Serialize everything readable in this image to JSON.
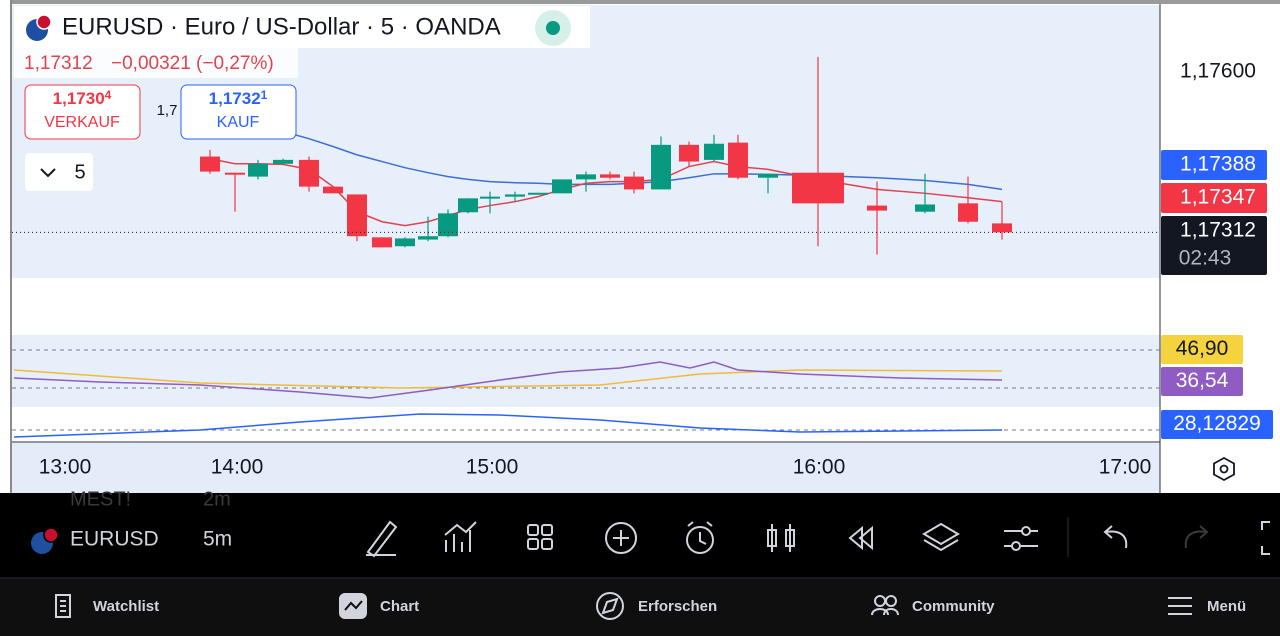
{
  "header": {
    "title": "EURUSD · Euro / US-Dollar · 5 · OANDA",
    "quote": "1,17312",
    "change": "−0,00321 (−0,27%)"
  },
  "trade": {
    "sell_price": "1,1730",
    "sell_pip": "4",
    "sell_label": "VERKAUF",
    "buy_price": "1,1732",
    "buy_pip": "1",
    "buy_label": "KAUF",
    "partial": "1,7"
  },
  "interval": "5",
  "chart_data": {
    "type": "candlestick",
    "ylim": [
      1.1723,
      1.1772
    ],
    "yticks": [
      {
        "value": 1.176,
        "label": "1,17600"
      }
    ],
    "time_labels": [
      "13:00",
      "14:00",
      "15:00",
      "16:00",
      "17:00"
    ],
    "up_color": "#089981",
    "down_color": "#f23645",
    "open": [
      1.17448,
      1.17419,
      1.17412,
      1.17435,
      1.17442,
      1.17394,
      1.1738,
      1.17303,
      1.17287,
      1.17299,
      1.17305,
      1.17348,
      1.17373,
      1.17376,
      1.1738,
      1.17382,
      1.17407,
      1.17416,
      1.17412,
      1.17389,
      1.17469,
      1.17442,
      1.17473,
      1.1741,
      1.17419,
      1.1736,
      1.17349,
      1.17364,
      1.17328
    ],
    "high": [
      1.1746,
      1.17419,
      1.17442,
      1.17444,
      1.17448,
      1.17394,
      1.1738,
      1.17303,
      1.17303,
      1.1734,
      1.17353,
      1.17373,
      1.17385,
      1.17385,
      1.17383,
      1.17407,
      1.17421,
      1.17421,
      1.17421,
      1.17484,
      1.17475,
      1.17487,
      1.17487,
      1.17417,
      1.17627,
      1.17403,
      1.17417,
      1.17412,
      1.17367
    ],
    "low": [
      1.17417,
      1.17349,
      1.17407,
      1.17433,
      1.17385,
      1.17382,
      1.17296,
      1.17285,
      1.17285,
      1.17296,
      1.17303,
      1.17346,
      1.17346,
      1.17367,
      1.1738,
      1.17382,
      1.17385,
      1.17407,
      1.17382,
      1.17389,
      1.1743,
      1.17439,
      1.17407,
      1.17382,
      1.17287,
      1.17272,
      1.17346,
      1.17328,
      1.17299
    ],
    "close": [
      1.17421,
      1.17417,
      1.17435,
      1.17442,
      1.17394,
      1.17382,
      1.17305,
      1.17285,
      1.17301,
      1.17305,
      1.17346,
      1.17373,
      1.17376,
      1.1738,
      1.17383,
      1.17407,
      1.17416,
      1.1741,
      1.17389,
      1.17469,
      1.17439,
      1.17471,
      1.1741,
      1.17417,
      1.17364,
      1.17351,
      1.17362,
      1.17331,
      1.17312
    ],
    "lines": [
      {
        "color": "#3b6fd4",
        "values": [
          1.17525,
          1.17514,
          1.17503,
          1.17493,
          1.1748,
          1.17466,
          1.17451,
          1.17439,
          1.17428,
          1.17419,
          1.17412,
          1.17407,
          1.17403,
          1.17401,
          1.174,
          1.17398,
          1.17398,
          1.17398,
          1.174,
          1.17403,
          1.1741,
          1.17417,
          1.17417,
          1.17416,
          1.17414,
          1.1741,
          1.17405,
          1.17398,
          1.17389
        ]
      },
      {
        "color": "#e0434f",
        "values": [
          1.17444,
          1.17435,
          1.17435,
          1.17434,
          1.17425,
          1.17394,
          1.17349,
          1.17331,
          1.17324,
          1.17331,
          1.17342,
          1.17353,
          1.1736,
          1.17367,
          1.17376,
          1.17389,
          1.174,
          1.17403,
          1.17403,
          1.17407,
          1.1743,
          1.17439,
          1.1743,
          1.17425,
          1.17407,
          1.17389,
          1.17382,
          1.17374,
          1.17367
        ]
      }
    ],
    "price_tags": [
      {
        "label": "1,17388",
        "color": "#2962ff"
      },
      {
        "label": "1,17347",
        "color": "#f23645"
      },
      {
        "label": "1,17312",
        "color": "#131722"
      }
    ],
    "countdown": "02:43",
    "indicator_tags": [
      {
        "label": "46,90",
        "color": "#f5d33f"
      },
      {
        "label": "36,54",
        "color": "#8e5cc2"
      },
      {
        "label": "28,12829",
        "color": "#2962ff"
      }
    ]
  },
  "toolbar": {
    "ghost_symbol": "MEST!",
    "ghost_interval": "2m",
    "symbol": "EURUSD",
    "interval": "5m"
  },
  "nav": [
    "Watchlist",
    "Chart",
    "Erforschen",
    "Community",
    "Menü"
  ]
}
